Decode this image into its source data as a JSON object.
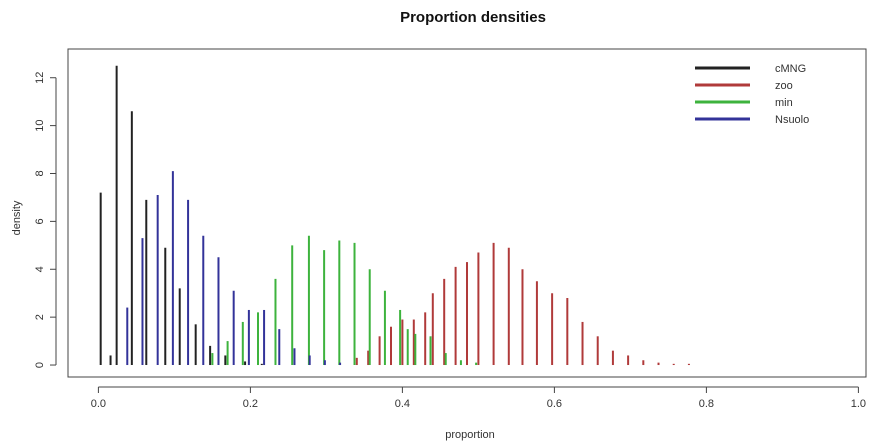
{
  "chart_data": {
    "type": "bar",
    "title": "Proportion densities",
    "xlabel": "proportion",
    "ylabel": "density",
    "xlim": [
      -0.04,
      1.01
    ],
    "ylim": [
      -0.5,
      13.2
    ],
    "xticks": [
      "0.0",
      "0.2",
      "0.4",
      "0.6",
      "0.8",
      "1.0"
    ],
    "yticks": [
      "0",
      "2",
      "4",
      "6",
      "8",
      "10",
      "12"
    ],
    "grid": false,
    "legend_position": "top-right",
    "series": [
      {
        "name": "cMNG",
        "color": "#222222",
        "points": [
          [
            0.003,
            7.2
          ],
          [
            0.016,
            0.4
          ],
          [
            0.024,
            12.5
          ],
          [
            0.044,
            10.6
          ],
          [
            0.063,
            6.9
          ],
          [
            0.088,
            4.9
          ],
          [
            0.107,
            3.2
          ],
          [
            0.128,
            1.7
          ],
          [
            0.147,
            0.8
          ],
          [
            0.167,
            0.4
          ],
          [
            0.193,
            0.15
          ],
          [
            0.215,
            0.05
          ]
        ]
      },
      {
        "name": "zoo",
        "color": "#b03a3a",
        "points": [
          [
            0.34,
            0.3
          ],
          [
            0.355,
            0.6
          ],
          [
            0.37,
            1.2
          ],
          [
            0.385,
            1.6
          ],
          [
            0.4,
            1.9
          ],
          [
            0.415,
            1.9
          ],
          [
            0.43,
            2.2
          ],
          [
            0.44,
            3.0
          ],
          [
            0.455,
            3.6
          ],
          [
            0.47,
            4.1
          ],
          [
            0.485,
            4.3
          ],
          [
            0.5,
            4.7
          ],
          [
            0.52,
            5.1
          ],
          [
            0.54,
            4.9
          ],
          [
            0.558,
            4.0
          ],
          [
            0.577,
            3.5
          ],
          [
            0.597,
            3.0
          ],
          [
            0.617,
            2.8
          ],
          [
            0.637,
            1.8
          ],
          [
            0.657,
            1.2
          ],
          [
            0.677,
            0.6
          ],
          [
            0.697,
            0.4
          ],
          [
            0.717,
            0.2
          ],
          [
            0.737,
            0.1
          ],
          [
            0.757,
            0.05
          ],
          [
            0.777,
            0.05
          ]
        ]
      },
      {
        "name": "min",
        "color": "#3db33d",
        "points": [
          [
            0.15,
            0.5
          ],
          [
            0.17,
            1.0
          ],
          [
            0.19,
            1.8
          ],
          [
            0.21,
            2.2
          ],
          [
            0.233,
            3.6
          ],
          [
            0.255,
            5.0
          ],
          [
            0.277,
            5.4
          ],
          [
            0.297,
            4.8
          ],
          [
            0.317,
            5.2
          ],
          [
            0.337,
            5.1
          ],
          [
            0.357,
            4.0
          ],
          [
            0.377,
            3.1
          ],
          [
            0.397,
            2.3
          ],
          [
            0.407,
            1.5
          ],
          [
            0.417,
            1.3
          ],
          [
            0.437,
            1.2
          ],
          [
            0.457,
            0.5
          ],
          [
            0.477,
            0.2
          ],
          [
            0.497,
            0.1
          ]
        ]
      },
      {
        "name": "Nsuolo",
        "color": "#333399",
        "points": [
          [
            0.038,
            2.4
          ],
          [
            0.058,
            5.3
          ],
          [
            0.078,
            7.1
          ],
          [
            0.098,
            8.1
          ],
          [
            0.118,
            6.9
          ],
          [
            0.138,
            5.4
          ],
          [
            0.158,
            4.5
          ],
          [
            0.178,
            3.1
          ],
          [
            0.198,
            2.3
          ],
          [
            0.218,
            2.3
          ],
          [
            0.238,
            1.5
          ],
          [
            0.258,
            0.7
          ],
          [
            0.278,
            0.4
          ],
          [
            0.298,
            0.2
          ],
          [
            0.318,
            0.1
          ]
        ]
      }
    ]
  }
}
